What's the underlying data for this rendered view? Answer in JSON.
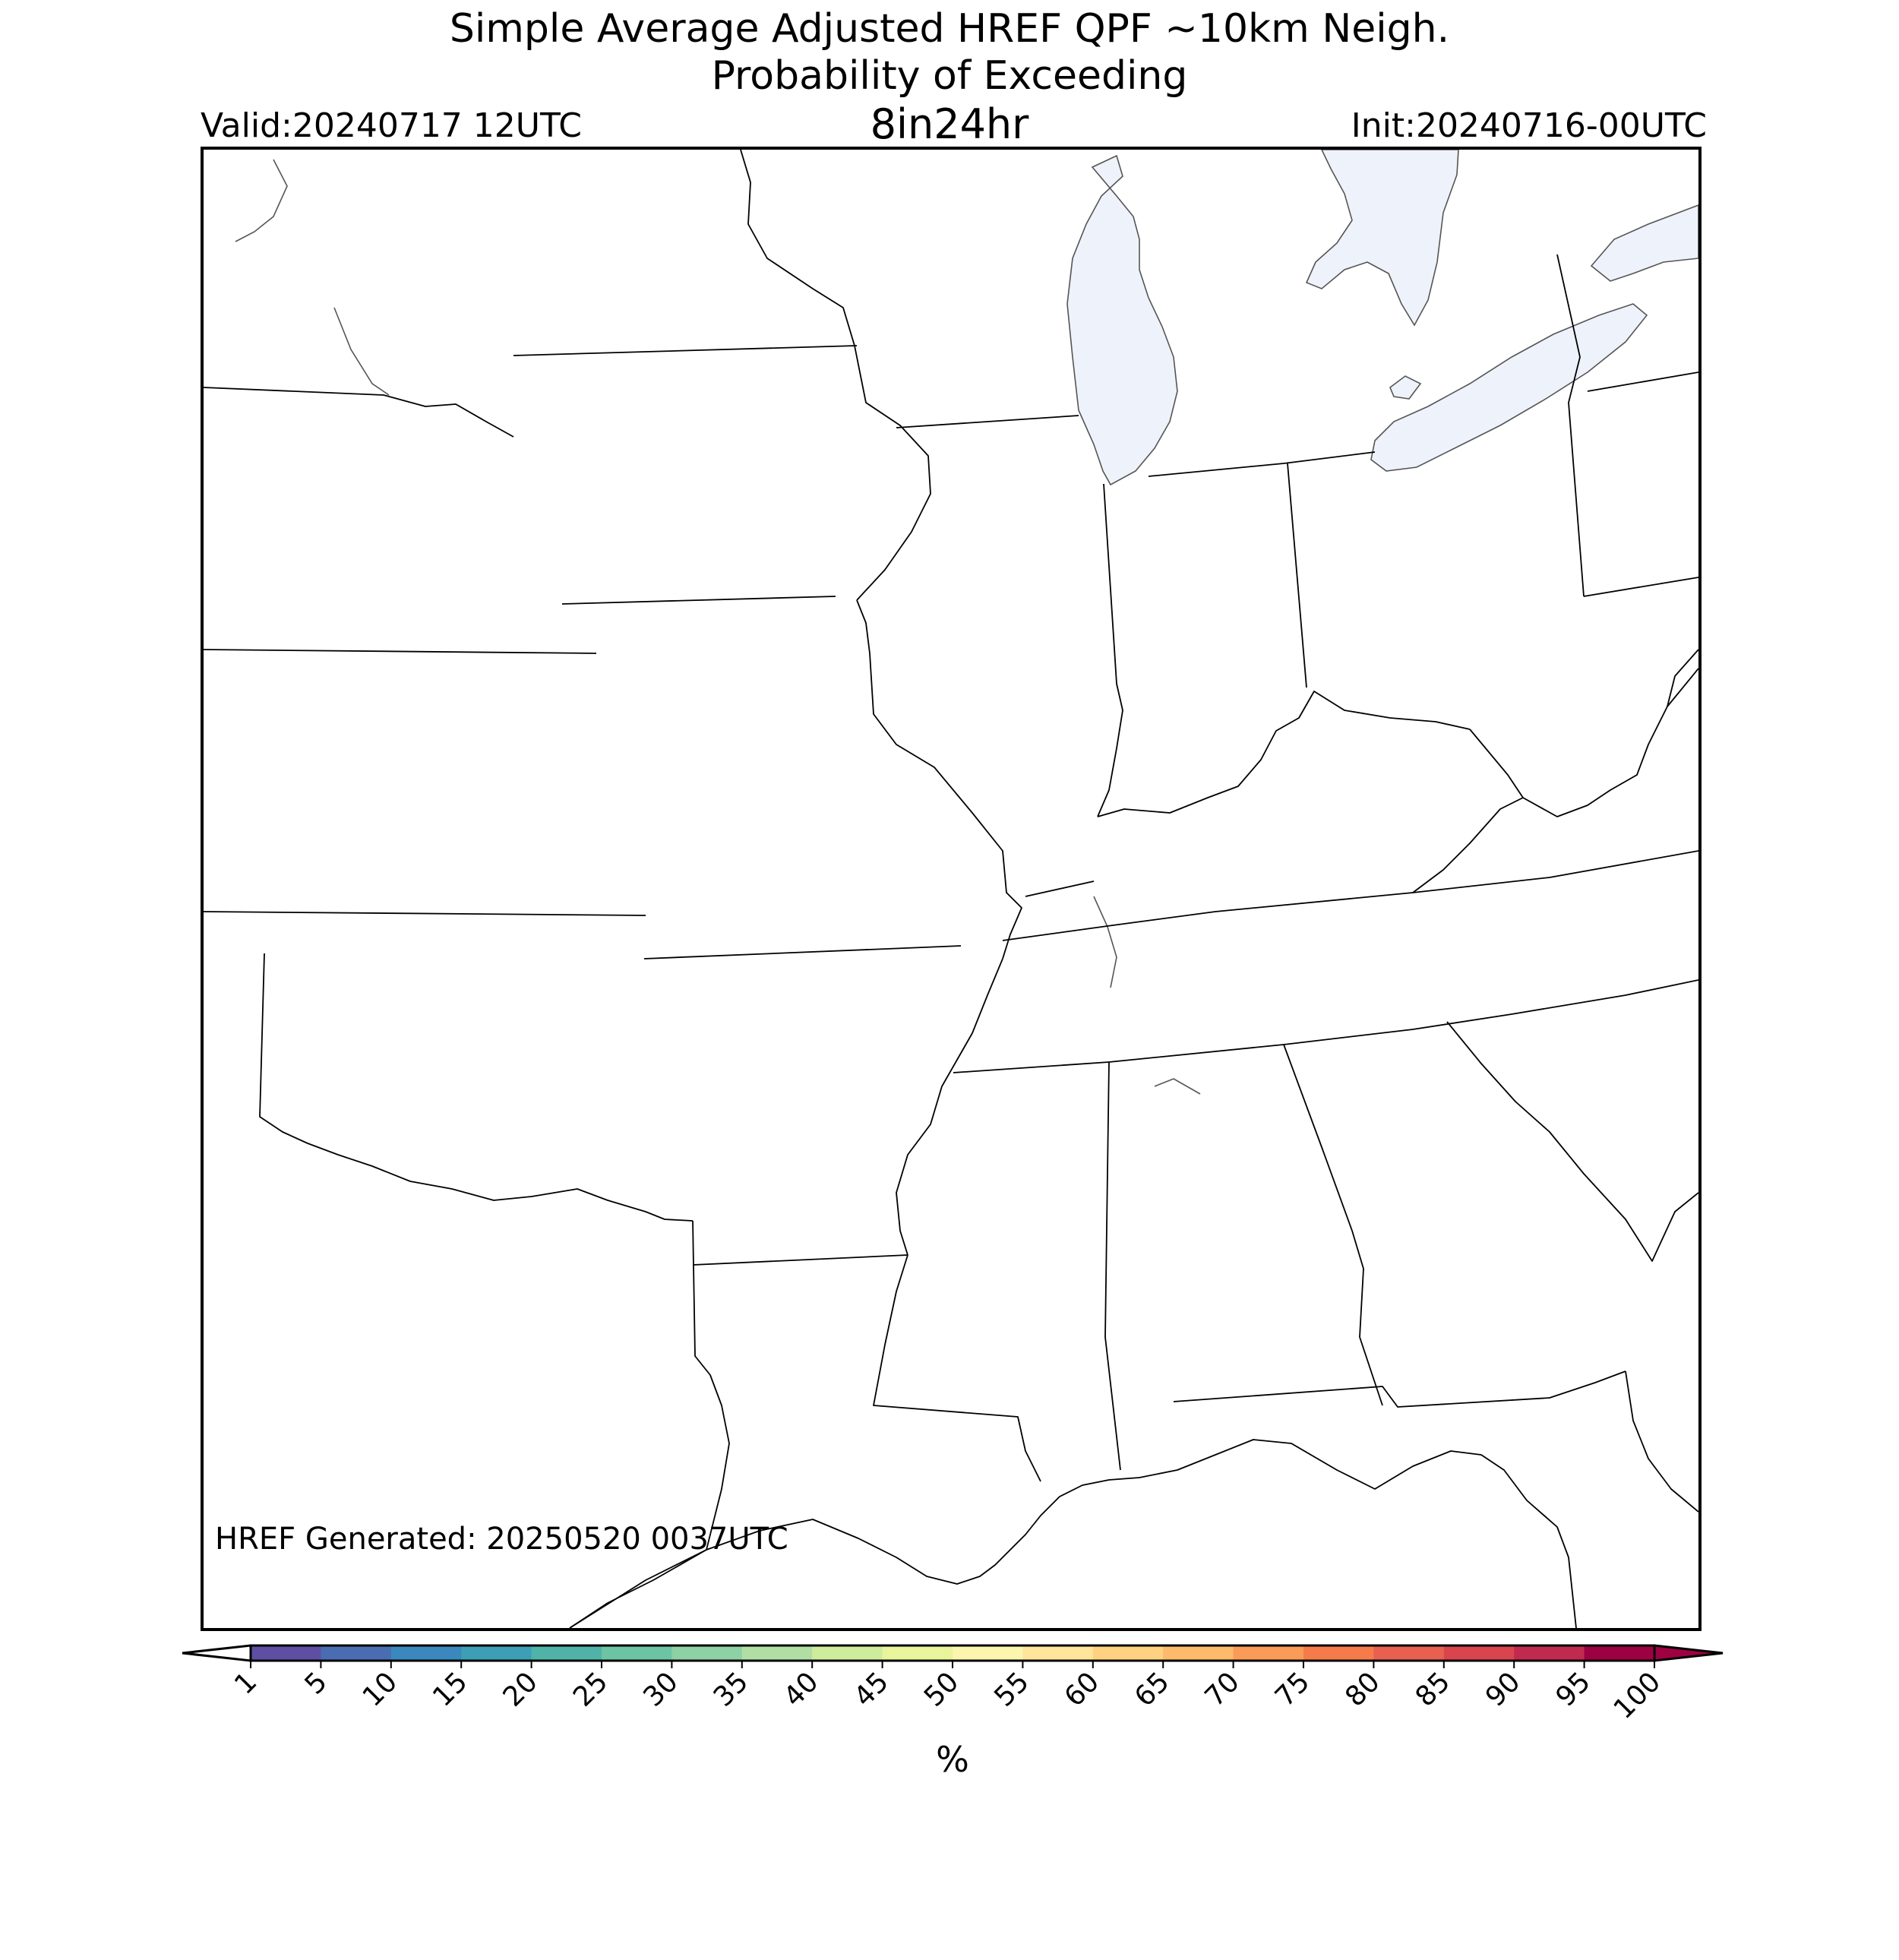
{
  "title": {
    "line1": "Simple Average Adjusted HREF QPF ~10km Neigh.",
    "line2": "Probability of Exceeding",
    "threshold": "8in24hr",
    "valid": "Valid:20240717 12UTC",
    "init": "Init:20240716-00UTC"
  },
  "map": {
    "generated": "HREF Generated: 20250520 0037UTC",
    "water_color": "#eef2fa",
    "border_color": "#000000"
  },
  "colorbar": {
    "ticks": [
      "1",
      "5",
      "10",
      "15",
      "20",
      "25",
      "30",
      "35",
      "40",
      "45",
      "50",
      "55",
      "60",
      "65",
      "70",
      "75",
      "80",
      "85",
      "90",
      "95",
      "100"
    ],
    "colors": [
      "#5e4fa2",
      "#4a6db2",
      "#3b88bc",
      "#3d9fb5",
      "#50b3a8",
      "#6cc4a4",
      "#8dd1a4",
      "#b1dfa3",
      "#cfeb9c",
      "#e8f59b",
      "#fbf5ad",
      "#fee59a",
      "#fed280",
      "#fdba6b",
      "#fa9b58",
      "#f67b4a",
      "#e8604f",
      "#d9444d",
      "#c12a4e",
      "#9e0142"
    ],
    "under_color": "#ffffff",
    "over_color": "#9e0142",
    "label": "%"
  }
}
